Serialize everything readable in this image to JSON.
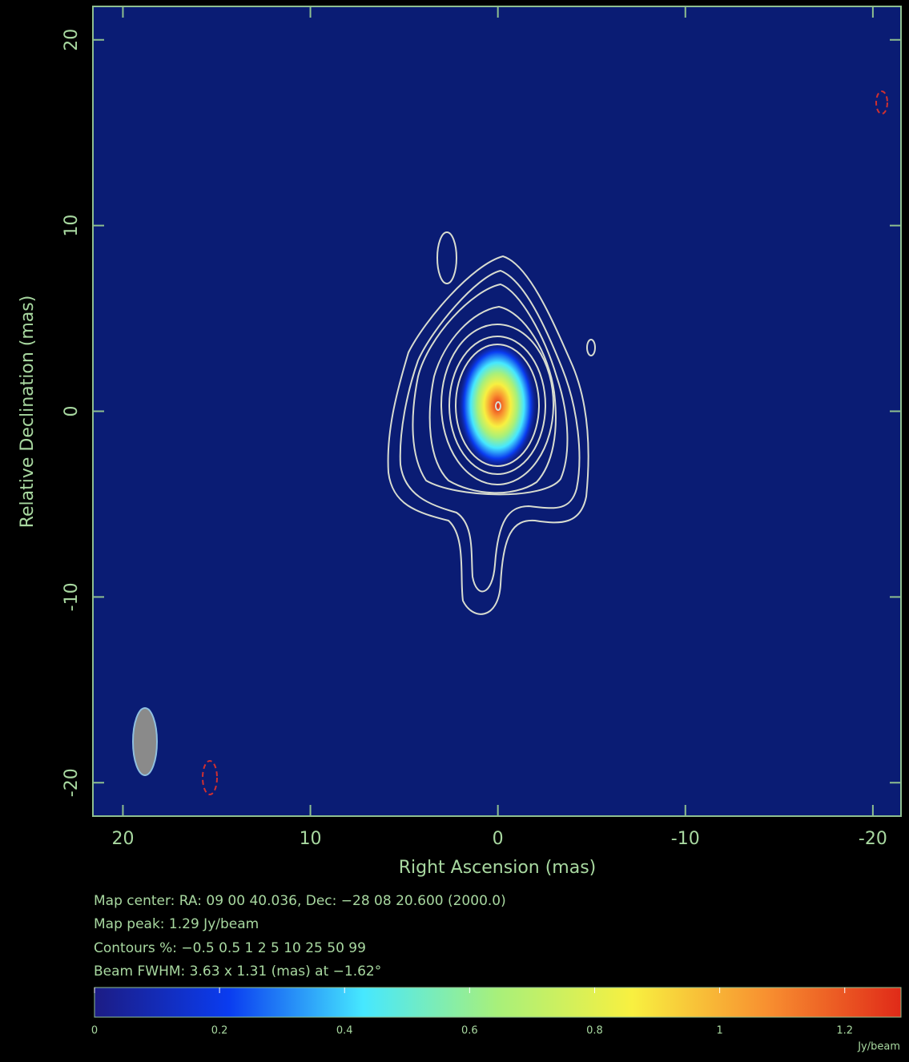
{
  "chart_data": {
    "type": "contour",
    "xlabel": "Right Ascension  (mas)",
    "ylabel": "Relative Declination  (mas)",
    "xlim": [
      21.6,
      -21.5
    ],
    "xticks": [
      20,
      10,
      0,
      -10,
      -20
    ],
    "ylim": [
      -21.8,
      21.8
    ],
    "yticks": [
      -20,
      -10,
      0,
      10,
      20
    ],
    "annotations": [
      "Map center:  RA: 09 00 40.036,  Dec: −28 08 20.600 (2000.0)",
      "Map peak: 1.29 Jy/beam",
      "Contours %: −0.5 0.5 1 2 5 10 25 50 99",
      "Beam FWHM: 3.63 x 1.31 (mas) at −1.62°"
    ],
    "colorbar": {
      "label": "Jy/beam",
      "lim": [
        0,
        1.29
      ],
      "ticks": [
        0,
        0.2,
        0.4,
        0.6,
        0.8,
        1,
        1.2
      ],
      "colormap": [
        "#1c1c84",
        "#0a3cf0",
        "#46e8ff",
        "#a8f07a",
        "#f8f040",
        "#f89030",
        "#e02a18"
      ]
    }
  }
}
